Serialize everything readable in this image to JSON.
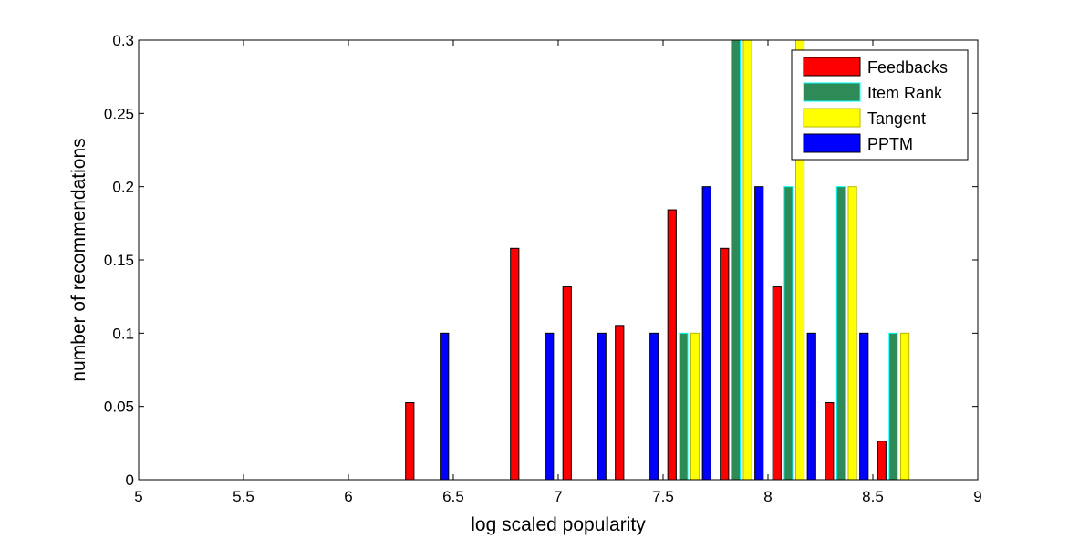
{
  "chart_data": {
    "type": "bar",
    "xlabel": "log scaled popularity",
    "ylabel": "number of recommendations",
    "xlim": [
      5,
      9
    ],
    "ylim": [
      0,
      0.3
    ],
    "xticks": [
      "5",
      "5.5",
      "6",
      "6.5",
      "7",
      "7.5",
      "8",
      "8.5",
      "9"
    ],
    "yticks": [
      "0",
      "0.05",
      "0.1",
      "0.15",
      "0.2",
      "0.25",
      "0.3"
    ],
    "bin_centers": [
      5.125,
      5.375,
      5.625,
      5.875,
      6.125,
      6.375,
      6.625,
      6.875,
      7.125,
      7.375,
      7.625,
      7.875,
      8.125,
      8.375,
      8.625,
      8.875
    ],
    "legend_position": "top-right",
    "grid": false,
    "series": [
      {
        "name": "Feedbacks",
        "color": "#ff0000",
        "edge": "#000000",
        "values": [
          0,
          0,
          0,
          0,
          0,
          0.0526,
          0,
          0.1579,
          0.1316,
          0.1053,
          0.1842,
          0.1579,
          0.1316,
          0.0526,
          0.0263,
          0
        ]
      },
      {
        "name": "Item Rank",
        "color": "#2e8b57",
        "edge": "#00ffff",
        "values": [
          0,
          0,
          0,
          0,
          0,
          0,
          0,
          0,
          0,
          0,
          0.1,
          0.3,
          0.2,
          0.2,
          0.1,
          0
        ]
      },
      {
        "name": "Tangent",
        "color": "#ffff00",
        "edge": "#b8b800",
        "values": [
          0,
          0,
          0,
          0,
          0,
          0,
          0,
          0,
          0,
          0,
          0.1,
          0.3,
          0.3,
          0.2,
          0.1,
          0
        ]
      },
      {
        "name": "PPTM",
        "color": "#0000ff",
        "edge": "#000000",
        "values": [
          0,
          0,
          0,
          0,
          0,
          0.1,
          0,
          0.1,
          0.1,
          0.1,
          0.2,
          0.2,
          0.1,
          0.1,
          0,
          0
        ]
      }
    ]
  }
}
